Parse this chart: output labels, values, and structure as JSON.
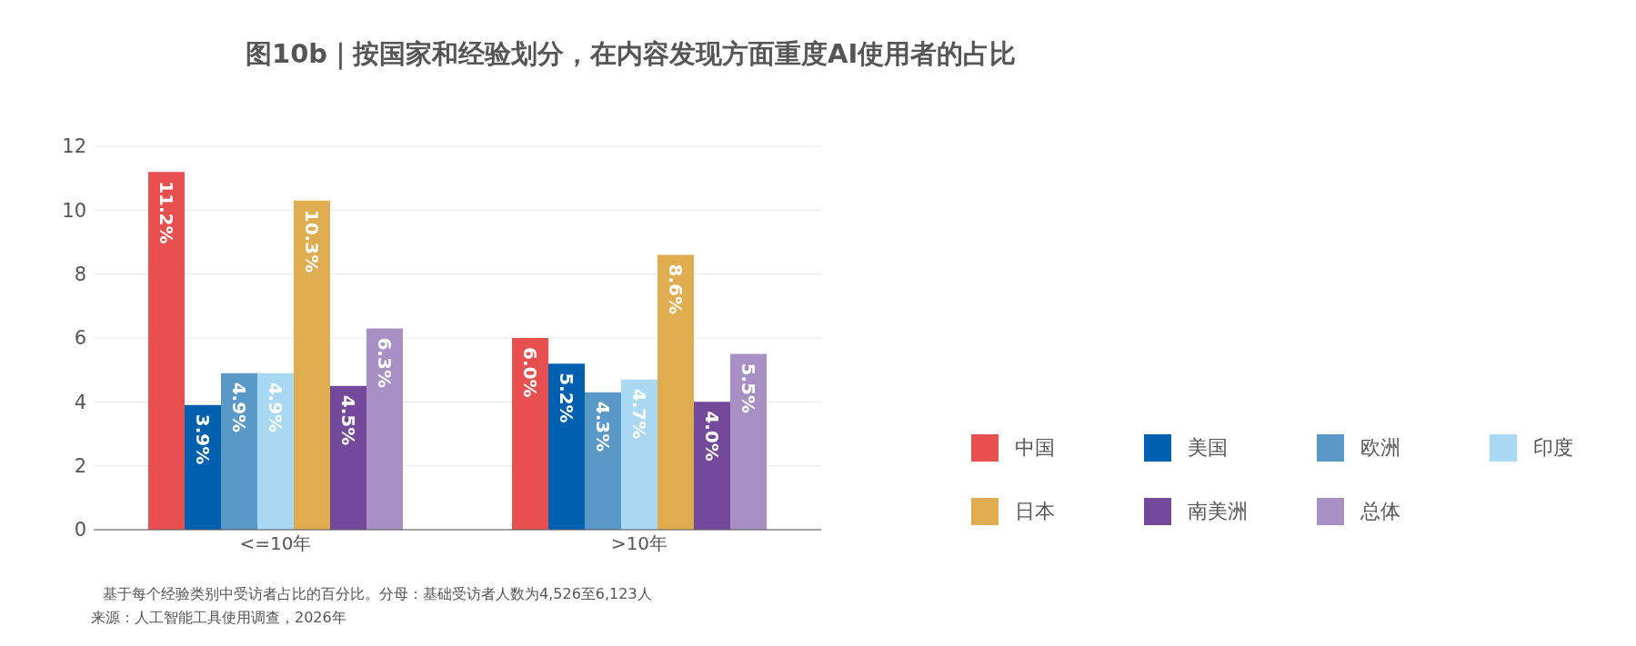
{
  "chart_data": {
    "type": "bar",
    "title": "图10b｜按国家和经验划分，在内容发现方面重度AI使用者的占比",
    "categories": [
      "<=10年",
      ">10年"
    ],
    "series": [
      {
        "name": "中国",
        "color": "#e85050",
        "values": [
          11.2,
          6.0
        ],
        "value_labels": [
          "11.2%",
          "6.0%"
        ]
      },
      {
        "name": "美国",
        "color": "#0060b0",
        "values": [
          3.9,
          5.2
        ],
        "value_labels": [
          "3.9%",
          "5.2%"
        ]
      },
      {
        "name": "欧洲",
        "color": "#5a98c8",
        "values": [
          4.9,
          4.3
        ],
        "value_labels": [
          "4.9%",
          "4.3%"
        ]
      },
      {
        "name": "印度",
        "color": "#a8d8f2",
        "values": [
          4.9,
          4.7
        ],
        "value_labels": [
          "4.9%",
          "4.7%"
        ]
      },
      {
        "name": "日本",
        "color": "#e0ac50",
        "values": [
          10.3,
          8.6
        ],
        "value_labels": [
          "10.3%",
          "8.6%"
        ]
      },
      {
        "name": "南美洲",
        "color": "#74489a",
        "values": [
          4.5,
          4.0
        ],
        "value_labels": [
          "4.5%",
          "4.0%"
        ]
      },
      {
        "name": "总体",
        "color": "#a890c4",
        "values": [
          6.3,
          5.5
        ],
        "value_labels": [
          "6.3%",
          "5.5%"
        ]
      }
    ],
    "ylim": [
      0,
      12
    ],
    "yticks": [
      0,
      2,
      4,
      6,
      8,
      10,
      12
    ],
    "grid": "y",
    "legend": "right",
    "annotations": [
      "基于每个经验类别中受访者占比的百分比。分母：基础受访者人数为4,526至6,123人",
      "来源：人工智能工具使用调查，2026年"
    ]
  }
}
